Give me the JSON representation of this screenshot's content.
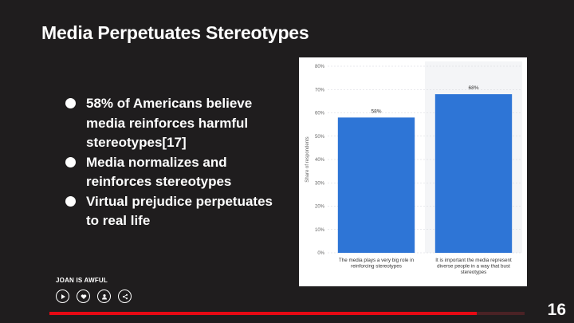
{
  "slide": {
    "title": "Media Perpetuates Stereotypes",
    "bullets": [
      "58% of Americans believe media reinforces harmful stereotypes[17]",
      "Media normalizes and reinforces stereotypes",
      "Virtual prejudice perpetuates to real life"
    ],
    "brand": "JOAN IS AWFUL",
    "page_number": "16",
    "progress": 0.9
  },
  "controls": [
    {
      "icon": "play-icon"
    },
    {
      "icon": "heart-icon"
    },
    {
      "icon": "user-icon"
    },
    {
      "icon": "share-icon"
    }
  ],
  "colors": {
    "background": "#1f1d1e",
    "accent": "#e50914",
    "bar": "#2e75d6"
  },
  "chart_data": {
    "type": "bar",
    "categories": [
      "The media plays a very big role in reinforcing stereotypes",
      "It is important the media represent diverse people in a way that bust stereotypes"
    ],
    "category_lines": [
      [
        "The media plays a very big role in",
        "reinforcing stereotypes"
      ],
      [
        "It is important the media represent",
        "diverse people in a way that bust",
        "stereotypes"
      ]
    ],
    "values": [
      58,
      68
    ],
    "data_labels": [
      "58%",
      "68%"
    ],
    "ylabel": "Share of respondents",
    "ylim": [
      0,
      80
    ],
    "yticks": [
      0,
      10,
      20,
      30,
      40,
      50,
      60,
      70,
      80
    ],
    "ytick_labels": [
      "0%",
      "10%",
      "20%",
      "30%",
      "40%",
      "50%",
      "60%",
      "70%",
      "80%"
    ],
    "grid": true
  }
}
